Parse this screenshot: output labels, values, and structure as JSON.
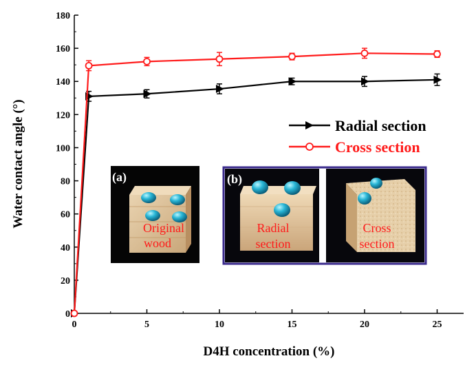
{
  "chart_data": {
    "type": "line",
    "xlabel": "D4H concentration (%)",
    "ylabel": "Water contact angle (°)",
    "xlim": [
      0,
      27
    ],
    "ylim": [
      0,
      180
    ],
    "x_ticks": [
      0,
      5,
      10,
      15,
      20,
      25
    ],
    "y_ticks": [
      0,
      20,
      40,
      60,
      80,
      100,
      120,
      140,
      160,
      180
    ],
    "grid": false,
    "legend_position": "right",
    "series": [
      {
        "name": "Radial section",
        "color": "#000000",
        "marker": "triangle-right",
        "x": [
          0,
          1,
          5,
          10,
          15,
          20,
          25
        ],
        "y": [
          0,
          131,
          132.5,
          135.5,
          140,
          140,
          141
        ],
        "err": [
          0,
          3,
          2.5,
          3,
          2,
          3,
          3.5
        ]
      },
      {
        "name": "Cross section",
        "color": "#ff1a1a",
        "marker": "open-circle",
        "x": [
          0,
          1,
          5,
          10,
          15,
          20,
          25
        ],
        "y": [
          0,
          149.5,
          152,
          153.5,
          155,
          157,
          156.5
        ],
        "err": [
          0,
          3,
          2.5,
          4,
          2,
          3,
          2
        ]
      }
    ],
    "annotations": [
      {
        "tag": "(a)",
        "caption": [
          "Original",
          "wood"
        ]
      },
      {
        "tag": "(b)",
        "captions": [
          [
            "Radial",
            "section"
          ],
          [
            "Cross",
            "section"
          ]
        ]
      }
    ]
  }
}
